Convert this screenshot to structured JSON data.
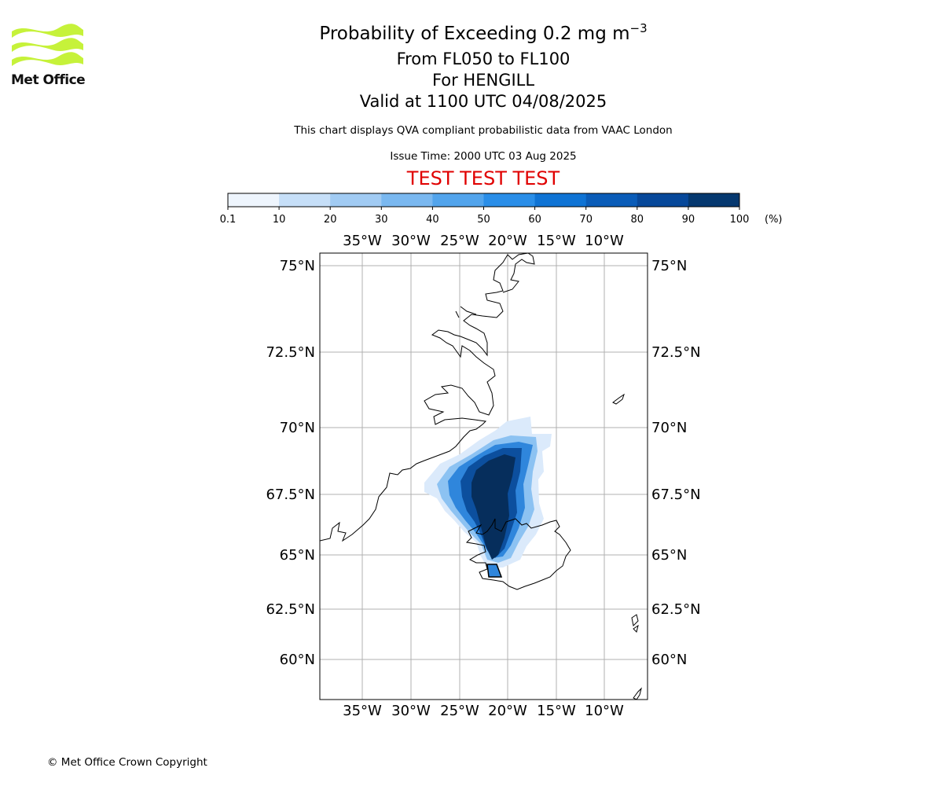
{
  "header": {
    "title_prefix": "Probability of Exceeding 0.2 mg m",
    "title_exponent": "−3",
    "level": "From FL050 to FL100",
    "volcano": "For HENGILL",
    "valid": "Valid at 1100 UTC 04/08/2025",
    "note": "This chart displays QVA compliant probabilistic data from VAAC London",
    "issue_time": "Issue Time: 2000 UTC 03 Aug 2025",
    "banner": "TEST TEST TEST"
  },
  "logo": {
    "text": "Met Office",
    "color": "#c6f23a"
  },
  "footer": {
    "copyright": "© Met Office Crown Copyright"
  },
  "colorbar": {
    "ticks": [
      "0.1",
      "10",
      "20",
      "30",
      "40",
      "50",
      "60",
      "70",
      "80",
      "90",
      "100"
    ],
    "unit": "(%)",
    "colors": [
      "#eef5fd",
      "#c6dff8",
      "#a1cbf3",
      "#7ab8f0",
      "#52a4ec",
      "#2a8ee8",
      "#0f73d4",
      "#0a5cb8",
      "#07489a",
      "#05386f"
    ]
  },
  "map": {
    "top_lon_labels": [
      "35°W",
      "30°W",
      "25°W",
      "20°W",
      "15°W",
      "10°W"
    ],
    "bottom_lon_labels": [
      "35°W",
      "30°W",
      "25°W",
      "20°W",
      "15°W",
      "10°W"
    ],
    "left_lat_labels": [
      "75°N",
      "72.5°N",
      "70°N",
      "67.5°N",
      "65°N",
      "62.5°N",
      "60°N"
    ],
    "right_lat_labels": [
      "75°N",
      "72.5°N",
      "70°N",
      "67.5°N",
      "65°N",
      "62.5°N",
      "60°N"
    ],
    "plume_colors": {
      "low": "#dbeafb",
      "mid": "#8cc2f2",
      "high": "#2f86dc",
      "veryhigh": "#0c4f9e",
      "core": "#062e5c"
    }
  }
}
